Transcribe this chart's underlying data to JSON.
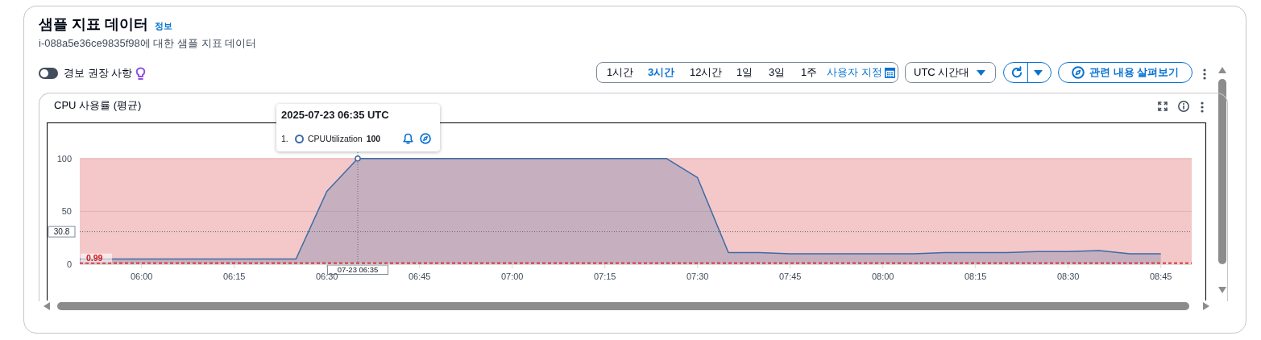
{
  "chart_data": {
    "type": "area",
    "title": "샘플 지표 데이터",
    "subtitle": "i-088a5e36ce9835f98에 대한 샘플 지표 데이터",
    "annotations": [
      "정보",
      "경보 권장 사항",
      "1시간",
      "3시간",
      "12시간",
      "1일",
      "3일",
      "1주",
      "사용자 지정",
      "UTC 시간대",
      "관련 내용 살펴보기",
      "CPU 사용률 (평균)",
      "2025-07-23 06:35 UTC",
      "1."
    ],
    "x": [
      "2025-07-23T05:50",
      "2025-07-23T05:55",
      "2025-07-23T06:00",
      "2025-07-23T06:05",
      "2025-07-23T06:10",
      "2025-07-23T06:15",
      "2025-07-23T06:20",
      "2025-07-23T06:25",
      "2025-07-23T06:30",
      "2025-07-23T06:35",
      "2025-07-23T06:40",
      "2025-07-23T06:45",
      "2025-07-23T06:50",
      "2025-07-23T06:55",
      "2025-07-23T07:00",
      "2025-07-23T07:05",
      "2025-07-23T07:10",
      "2025-07-23T07:15",
      "2025-07-23T07:20",
      "2025-07-23T07:25",
      "2025-07-23T07:30",
      "2025-07-23T07:35",
      "2025-07-23T07:40",
      "2025-07-23T07:45",
      "2025-07-23T07:50",
      "2025-07-23T07:55",
      "2025-07-23T08:00",
      "2025-07-23T08:05",
      "2025-07-23T08:10",
      "2025-07-23T08:15",
      "2025-07-23T08:20",
      "2025-07-23T08:25",
      "2025-07-23T08:30",
      "2025-07-23T08:35",
      "2025-07-23T08:40",
      "2025-07-23T08:45"
    ],
    "series": [
      {
        "name": "CPUUtilization",
        "color": "#3b6ba5",
        "values": [
          5,
          5,
          5,
          5,
          5,
          5,
          5,
          5,
          69,
          100,
          100,
          100,
          100,
          100,
          100,
          100,
          100,
          100,
          100,
          100,
          82,
          11,
          11,
          10,
          10,
          10,
          10,
          10,
          11,
          11,
          11,
          12,
          12,
          13,
          10,
          10
        ],
        "value_labels": [
          null,
          null,
          null,
          null,
          null,
          null,
          null,
          null,
          null,
          "100",
          null,
          null,
          null,
          null,
          null,
          null,
          null,
          null,
          null,
          null,
          null,
          null,
          null,
          null,
          null,
          null,
          null,
          null,
          null,
          null,
          null,
          null,
          null,
          null,
          null,
          null
        ]
      }
    ],
    "xlim": [
      "2025-07-23T05:50",
      "2025-07-23T08:50"
    ],
    "xticks": [
      {
        "value": "2025-07-23T06:00",
        "label": "06:00"
      },
      {
        "value": "2025-07-23T06:15",
        "label": "06:15"
      },
      {
        "value": "2025-07-23T06:30",
        "label": "06:30"
      },
      {
        "value": "2025-07-23T06:45",
        "label": "06:45"
      },
      {
        "value": "2025-07-23T07:00",
        "label": "07:00"
      },
      {
        "value": "2025-07-23T07:15",
        "label": "07:15"
      },
      {
        "value": "2025-07-23T07:30",
        "label": "07:30"
      },
      {
        "value": "2025-07-23T07:45",
        "label": "07:45"
      },
      {
        "value": "2025-07-23T08:00",
        "label": "08:00"
      },
      {
        "value": "2025-07-23T08:15",
        "label": "08:15"
      },
      {
        "value": "2025-07-23T08:30",
        "label": "08:30"
      },
      {
        "value": "2025-07-23T08:45",
        "label": "08:45"
      }
    ],
    "ylim": [
      0,
      125
    ],
    "yticks": [
      0,
      50,
      100
    ],
    "grid": "y",
    "legend": "top left",
    "ref_lines": [
      {
        "axis": "y",
        "value": 0.99,
        "label": "0.99",
        "color": "#d91515",
        "line_style": "dashed"
      },
      {
        "axis": "y",
        "value": 30.8,
        "label": "30.8",
        "color": "#5f6b7a",
        "line_style": "dotted"
      },
      {
        "axis": "x",
        "value": "2025-07-23T06:35",
        "label": "07-23 06:35",
        "color": "#5f6b7a",
        "line_style": "dotted"
      }
    ],
    "bands": [
      {
        "axis": "y",
        "from": 0.99,
        "to": 100,
        "color": "#f4c7c9"
      }
    ]
  }
}
